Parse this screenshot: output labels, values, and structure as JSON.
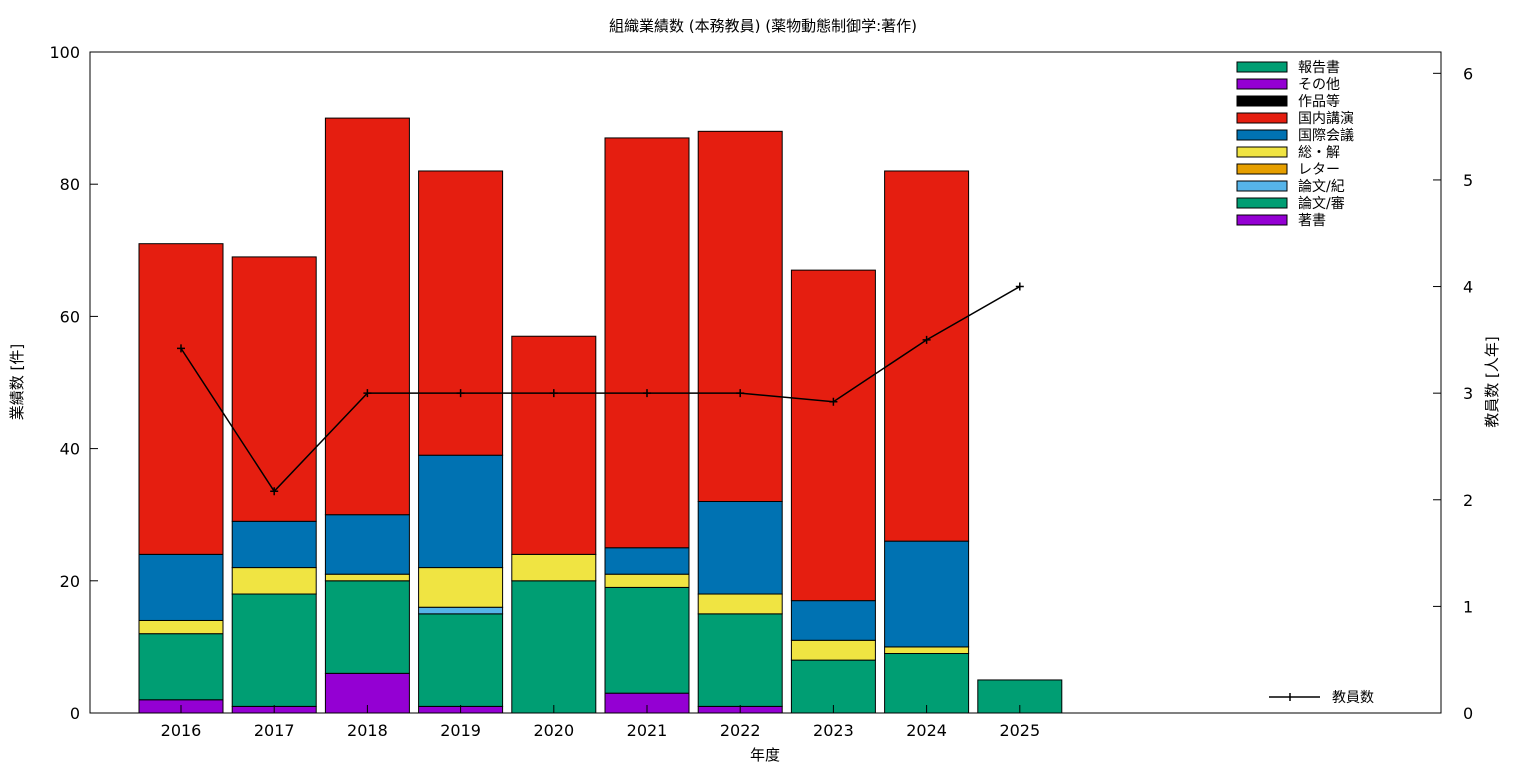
{
  "chart_data": {
    "type": "bar",
    "stacked": true,
    "title": "組織業績数 (本務教員) (薬物動態制御学:著作)",
    "xlabel": "年度",
    "ylabel": "業績数 [件]",
    "y2label": "教員数 [人年]",
    "ylim": [
      0,
      100
    ],
    "y2lim": [
      0,
      6.2
    ],
    "yticks": [
      "0",
      "20",
      "40",
      "60",
      "80",
      "100"
    ],
    "y2ticks": [
      "0",
      "1",
      "2",
      "3",
      "4",
      "5",
      "6"
    ],
    "categories": [
      "2016",
      "2017",
      "2018",
      "2019",
      "2020",
      "2021",
      "2022",
      "2023",
      "2024",
      "2025"
    ],
    "grid": false,
    "legend_position": "top-right",
    "series": [
      {
        "name": "著書",
        "color": "#9400d3",
        "values": [
          2,
          1,
          6,
          1,
          0,
          3,
          1,
          0,
          0,
          0
        ]
      },
      {
        "name": "論文/審",
        "color": "#009e73",
        "values": [
          10,
          17,
          14,
          14,
          20,
          16,
          14,
          8,
          9,
          5
        ]
      },
      {
        "name": "論文/紀",
        "color": "#56b4e9",
        "values": [
          0,
          0,
          0,
          1,
          0,
          0,
          0,
          0,
          0,
          0
        ]
      },
      {
        "name": "レター",
        "color": "#e69f00",
        "values": [
          0,
          0,
          0,
          0,
          0,
          0,
          0,
          0,
          0,
          0
        ]
      },
      {
        "name": "総・解",
        "color": "#f0e442",
        "values": [
          2,
          4,
          1,
          6,
          4,
          2,
          3,
          3,
          1,
          0
        ]
      },
      {
        "name": "国際会議",
        "color": "#0072b2",
        "values": [
          10,
          7,
          9,
          17,
          0,
          4,
          14,
          6,
          16,
          0
        ]
      },
      {
        "name": "国内講演",
        "color": "#e51e10",
        "values": [
          47,
          40,
          60,
          43,
          33,
          62,
          56,
          50,
          56,
          0
        ]
      },
      {
        "name": "作品等",
        "color": "#000000",
        "values": [
          0,
          0,
          0,
          0,
          0,
          0,
          0,
          0,
          0,
          0
        ]
      },
      {
        "name": "その他",
        "color": "#9400d3",
        "values": [
          0,
          0,
          0,
          0,
          0,
          0,
          0,
          0,
          0,
          0
        ]
      },
      {
        "name": "報告書",
        "color": "#009e73",
        "values": [
          0,
          0,
          0,
          0,
          0,
          0,
          0,
          0,
          0,
          0
        ]
      }
    ],
    "legend_order": [
      "報告書",
      "その他",
      "作品等",
      "国内講演",
      "国際会議",
      "総・解",
      "レター",
      "論文/紀",
      "論文/審",
      "著書"
    ],
    "line_series": {
      "name": "教員数",
      "color": "#000000",
      "axis": "right",
      "values": [
        3.42,
        2.08,
        3.0,
        3.0,
        3.0,
        3.0,
        3.0,
        2.92,
        3.5,
        4.0
      ]
    }
  }
}
